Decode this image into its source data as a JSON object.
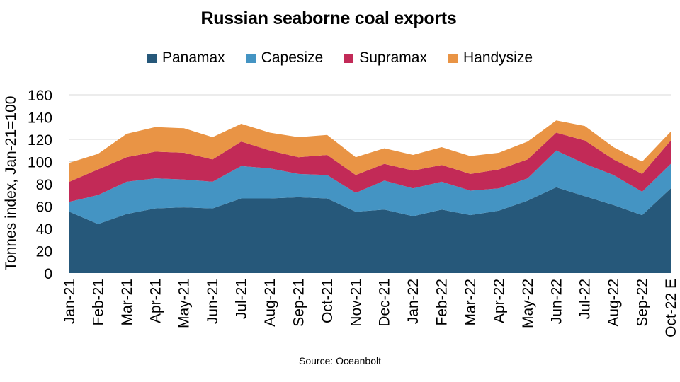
{
  "chart_data": {
    "type": "area",
    "stacked": true,
    "title": "Russian seaborne coal exports",
    "ylabel": "Tonnes index, Jan-21=100",
    "xlabel": "",
    "ylim": [
      0,
      160
    ],
    "yticks": [
      0,
      20,
      40,
      60,
      80,
      100,
      120,
      140,
      160
    ],
    "grid": true,
    "legend_position": "top",
    "categories": [
      "Jan-21",
      "Feb-21",
      "Mar-21",
      "Apr-21",
      "May-21",
      "Jun-21",
      "Jul-21",
      "Aug-21",
      "Sep-21",
      "Oct-21",
      "Nov-21",
      "Dec-21",
      "Jan-22",
      "Feb-22",
      "Mar-22",
      "Apr-22",
      "May-22",
      "Jun-22",
      "Jul-22",
      "Aug-22",
      "Sep-22",
      "Oct-22 E"
    ],
    "series": [
      {
        "name": "Panamax",
        "color": "#26587A",
        "values": [
          55,
          44,
          53,
          58,
          59,
          58,
          67,
          67,
          68,
          67,
          55,
          57,
          51,
          57,
          52,
          56,
          65,
          77,
          69,
          61,
          52,
          76
        ]
      },
      {
        "name": "Capesize",
        "color": "#4494C3",
        "values": [
          9,
          26,
          29,
          27,
          25,
          24,
          29,
          27,
          21,
          21,
          17,
          26,
          25,
          25,
          22,
          20,
          20,
          33,
          29,
          27,
          21,
          22
        ]
      },
      {
        "name": "Supramax",
        "color": "#C22A57",
        "values": [
          18,
          23,
          22,
          24,
          24,
          20,
          22,
          16,
          15,
          18,
          16,
          15,
          16,
          15,
          15,
          17,
          17,
          16,
          21,
          14,
          16,
          21
        ]
      },
      {
        "name": "Handysize",
        "color": "#E99445",
        "values": [
          17,
          14,
          21,
          22,
          22,
          20,
          16,
          16,
          18,
          18,
          16,
          14,
          14,
          16,
          16,
          15,
          16,
          11,
          13,
          11,
          11,
          8
        ]
      }
    ]
  },
  "source": "Source: Oceanbolt"
}
